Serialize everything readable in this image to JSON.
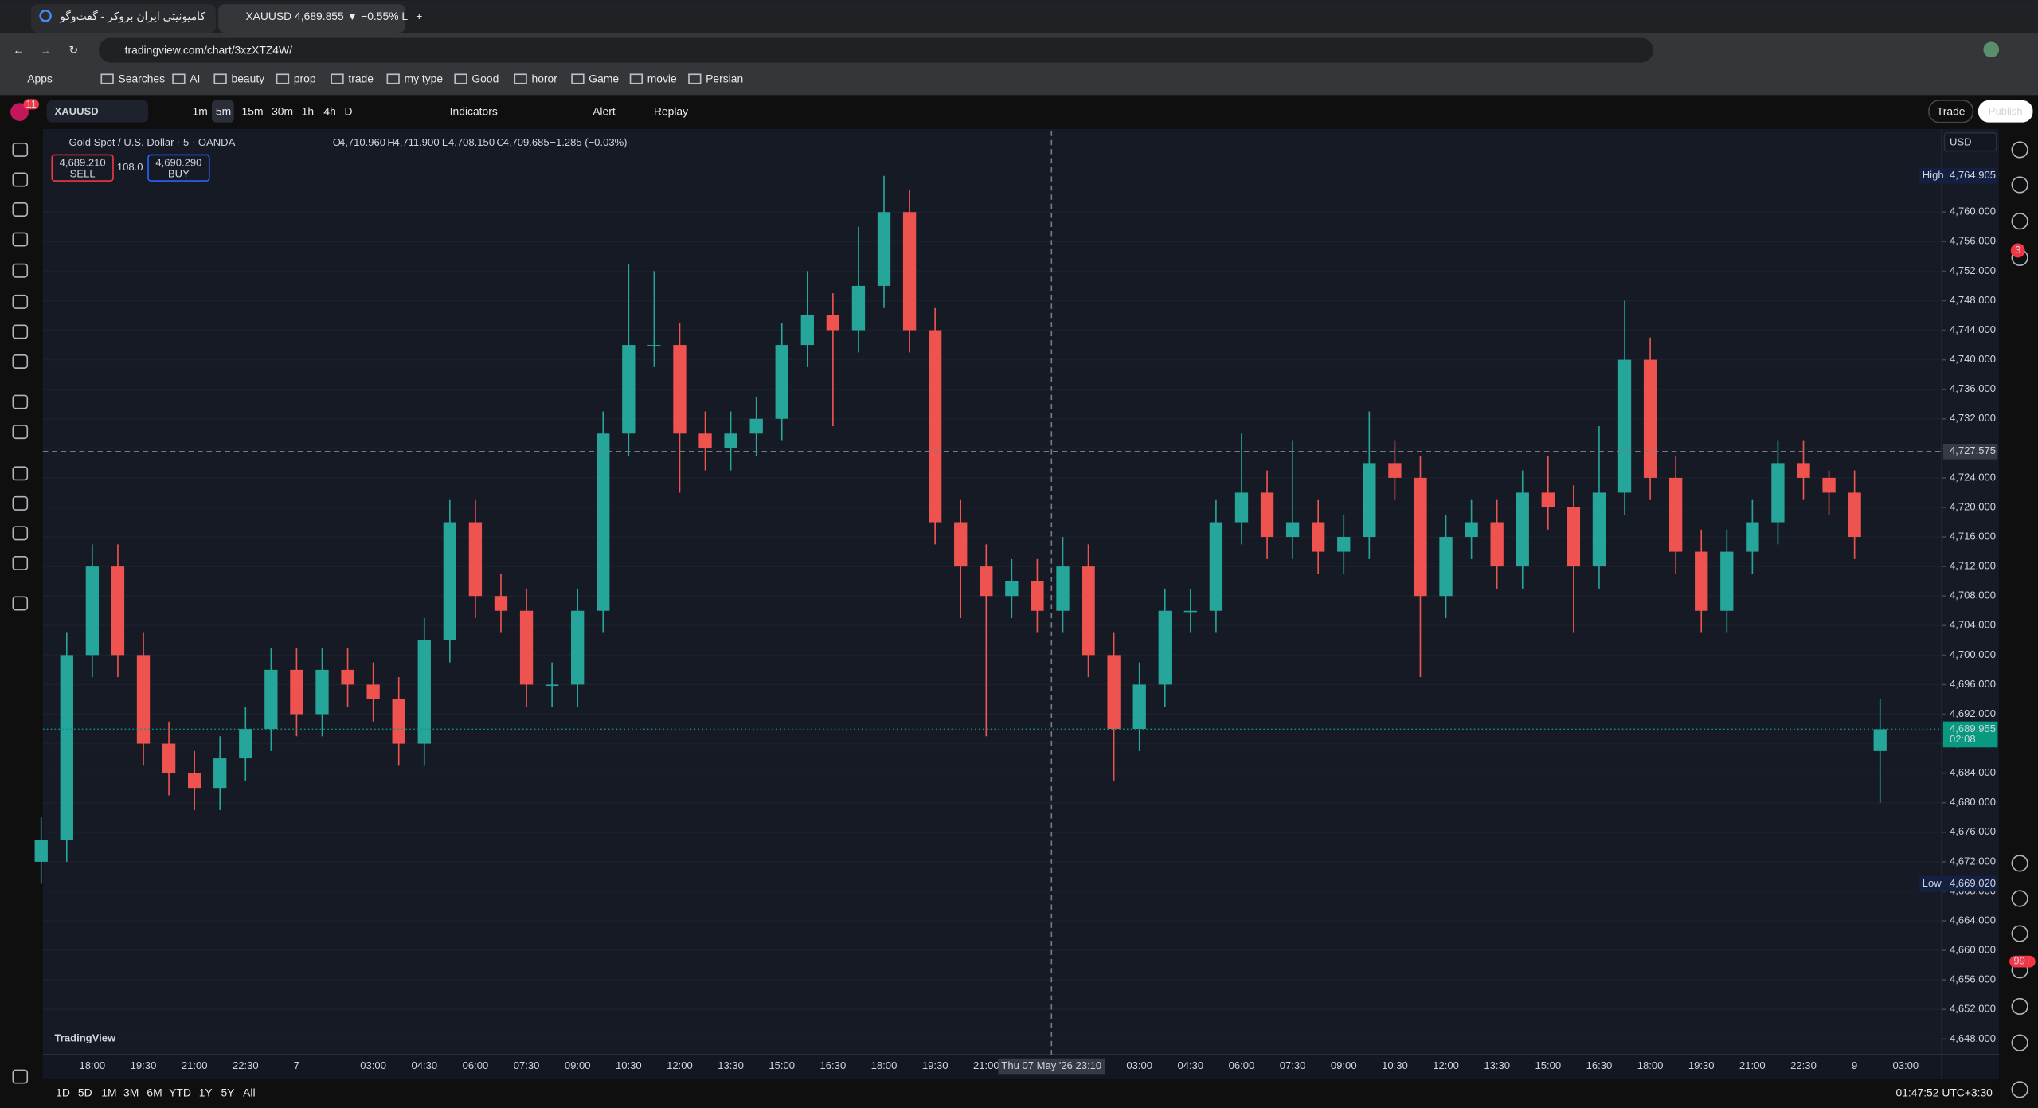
{
  "browser": {
    "tabs": [
      "کامیونیتی ایران بروکر - گفت‌وگو",
      "XAUUSD 4,689.855 ▼ −0.55% L"
    ],
    "url": "tradingview.com/chart/3xzXTZ4W/",
    "bookmarks": [
      "Apps",
      "Searches",
      "AI",
      "beauty",
      "prop",
      "trade",
      "my type",
      "Good",
      "horor",
      "Game",
      "movie",
      "Persian"
    ]
  },
  "toolbar": {
    "avatar_badge": "11",
    "symbol": "XAUUSD",
    "intervals": [
      "1m",
      "5m",
      "15m",
      "30m",
      "1h",
      "4h",
      "D"
    ],
    "indicators": "Indicators",
    "alert": "Alert",
    "replay": "Replay",
    "trade": "Trade",
    "publish": "Publish"
  },
  "legend": {
    "title": "Gold Spot / U.S. Dollar · 5 · OANDA",
    "ohlc": [
      {
        "key": "O",
        "value": "4,710.960"
      },
      {
        "key": "H",
        "value": "4,711.900"
      },
      {
        "key": "L",
        "value": "4,708.150"
      },
      {
        "key": "C",
        "value": "4,709.685"
      }
    ],
    "change": "−1.285 (−0.03%)",
    "sell_price": "4,689.210",
    "sell": "SELL",
    "spread": "108.0",
    "buy_price": "4,690.290",
    "buy": "BUY"
  },
  "price_scale": {
    "currency": "USD"
  },
  "chart_data": {
    "type": "candlestick",
    "up_color": "#26a69a",
    "down_color": "#ef5350",
    "grid": true,
    "categories": [
      null,
      null,
      "18:00",
      null,
      "19:30",
      null,
      "21:00",
      null,
      "22:30",
      null,
      "7",
      null,
      null,
      "03:00",
      null,
      "04:30",
      null,
      "06:00",
      null,
      "07:30",
      null,
      "09:00",
      null,
      "10:30",
      null,
      "12:00",
      null,
      "13:30",
      null,
      "15:00",
      null,
      "16:30",
      null,
      "18:00",
      null,
      "19:30",
      null,
      "21:00",
      null,
      null,
      null,
      null,
      null,
      "03:00",
      null,
      "04:30",
      null,
      "06:00",
      null,
      "07:30",
      null,
      "09:00",
      null,
      "10:30",
      null,
      "12:00",
      null,
      "13:30",
      null,
      "15:00",
      null,
      "16:30",
      null,
      "18:00",
      null,
      "19:30",
      null,
      "21:00",
      null,
      "22:30",
      null,
      "9",
      null,
      "03:00"
    ],
    "open": [
      4672,
      4675,
      4700,
      4712,
      4700,
      4688,
      4684,
      4682,
      4686,
      4690,
      4698,
      4692,
      4698,
      4696,
      4694,
      4688,
      4702,
      4718,
      4708,
      4706,
      4696,
      4696,
      4706,
      4730,
      4742,
      4742,
      4730,
      4728,
      4730,
      4732,
      4742,
      4746,
      4744,
      4750,
      4760,
      4744,
      4718,
      4712,
      4708,
      4710,
      4706,
      4712,
      4700,
      4690,
      4696,
      4706,
      4706,
      4718,
      4722,
      4716,
      4718,
      4714,
      4716,
      4726,
      4724,
      4708,
      4716,
      4718,
      4712,
      4722,
      4720,
      4712,
      4722,
      4740,
      4724,
      4714,
      4706,
      4714,
      4718,
      4726,
      4724,
      4722,
      4687,
      null
    ],
    "high": [
      4678,
      4703,
      4715,
      4715,
      4703,
      4691,
      4687,
      4689,
      4693,
      4701,
      4701,
      4701,
      4701,
      4699,
      4697,
      4705,
      4721,
      4721,
      4711,
      4709,
      4699,
      4709,
      4733,
      4753,
      4752,
      4745,
      4733,
      4733,
      4735,
      4745,
      4752,
      4749,
      4758,
      4764.905,
      4763,
      4747,
      4721,
      4715,
      4713,
      4713,
      4716,
      4715,
      4703,
      4699,
      4709,
      4709,
      4721,
      4730,
      4725,
      4729,
      4721,
      4719,
      4733,
      4729,
      4727,
      4719,
      4721,
      4721,
      4725,
      4727,
      4723,
      4731,
      4748,
      4743,
      4727,
      4717,
      4717,
      4721,
      4729,
      4729,
      4725,
      4725,
      4694,
      null
    ],
    "low": [
      4669.02,
      4672,
      4697,
      4697,
      4685,
      4681,
      4679,
      4679,
      4683,
      4687,
      4689,
      4689,
      4693,
      4691,
      4685,
      4685,
      4699,
      4705,
      4703,
      4693,
      4693,
      4693,
      4703,
      4727,
      4739,
      4722,
      4725,
      4725,
      4727,
      4729,
      4739,
      4731,
      4741,
      4747,
      4741,
      4715,
      4705,
      4689,
      4705,
      4703,
      4703,
      4697,
      4683,
      4687,
      4693,
      4703,
      4703,
      4715,
      4713,
      4713,
      4711,
      4711,
      4713,
      4721,
      4697,
      4705,
      4713,
      4709,
      4709,
      4717,
      4703,
      4709,
      4719,
      4721,
      4711,
      4703,
      4703,
      4711,
      4715,
      4721,
      4719,
      4713,
      4680,
      null
    ],
    "close": [
      4675,
      4700,
      4712,
      4700,
      4688,
      4684,
      4682,
      4686,
      4690,
      4698,
      4692,
      4698,
      4696,
      4694,
      4688,
      4702,
      4718,
      4708,
      4706,
      4696,
      4696,
      4706,
      4730,
      4742,
      4742,
      4730,
      4728,
      4730,
      4732,
      4742,
      4746,
      4744,
      4750,
      4760,
      4744,
      4718,
      4712,
      4708,
      4710,
      4706,
      4712,
      4700,
      4690,
      4696,
      4706,
      4706,
      4718,
      4722,
      4716,
      4718,
      4714,
      4716,
      4726,
      4724,
      4708,
      4716,
      4718,
      4712,
      4722,
      4720,
      4712,
      4722,
      4740,
      4724,
      4714,
      4706,
      4714,
      4718,
      4726,
      4724,
      4722,
      4716,
      4689.955,
      null
    ],
    "ylim": [
      4646,
      4771
    ],
    "yticks": [
      {
        "value": 4648,
        "label": "4,648.000"
      },
      {
        "value": 4652,
        "label": "4,652.000"
      },
      {
        "value": 4656,
        "label": "4,656.000"
      },
      {
        "value": 4660,
        "label": "4,660.000"
      },
      {
        "value": 4664,
        "label": "4,664.000"
      },
      {
        "value": 4668,
        "label": "4,668.000"
      },
      {
        "value": 4672,
        "label": "4,672.000"
      },
      {
        "value": 4676,
        "label": "4,676.000"
      },
      {
        "value": 4680,
        "label": "4,680.000"
      },
      {
        "value": 4684,
        "label": "4,684.000"
      },
      {
        "value": 4688,
        "label": "4,688.000"
      },
      {
        "value": 4692,
        "label": "4,692.000"
      },
      {
        "value": 4696,
        "label": "4,696.000"
      },
      {
        "value": 4700,
        "label": "4,700.000"
      },
      {
        "value": 4704,
        "label": "4,704.000"
      },
      {
        "value": 4708,
        "label": "4,708.000"
      },
      {
        "value": 4712,
        "label": "4,712.000"
      },
      {
        "value": 4716,
        "label": "4,716.000"
      },
      {
        "value": 4720,
        "label": "4,720.000"
      },
      {
        "value": 4724,
        "label": "4,724.000"
      },
      {
        "value": 4728,
        "label": "4,728.000"
      },
      {
        "value": 4732,
        "label": "4,732.000"
      },
      {
        "value": 4736,
        "label": "4,736.000"
      },
      {
        "value": 4740,
        "label": "4,740.000"
      },
      {
        "value": 4744,
        "label": "4,744.000"
      },
      {
        "value": 4748,
        "label": "4,748.000"
      },
      {
        "value": 4752,
        "label": "4,752.000"
      },
      {
        "value": 4756,
        "label": "4,756.000"
      },
      {
        "value": 4760,
        "label": "4,760.000"
      }
    ],
    "high_marker": {
      "label": "High",
      "price": {
        "value": 4764.905,
        "label": "4,764.905"
      }
    },
    "low_marker": {
      "label": "Low",
      "price": {
        "value": 4669.02,
        "label": "4,669.020"
      }
    },
    "last_price": {
      "value": 4689.955,
      "label": "4,689.955"
    },
    "countdown": "02:08",
    "crosshair_price": {
      "value": 4727.575,
      "label": "4,727.575"
    },
    "crosshair_time": "Thu 07 May '26  23:10",
    "watermark": "TradingView"
  },
  "bottom_bar": {
    "ranges": [
      "1D",
      "5D",
      "1M",
      "3M",
      "6M",
      "YTD",
      "1Y",
      "5Y",
      "All"
    ],
    "clock": "01:47:52 UTC+3:30"
  },
  "sidebar": {
    "badges": [
      "3",
      "99+"
    ]
  }
}
